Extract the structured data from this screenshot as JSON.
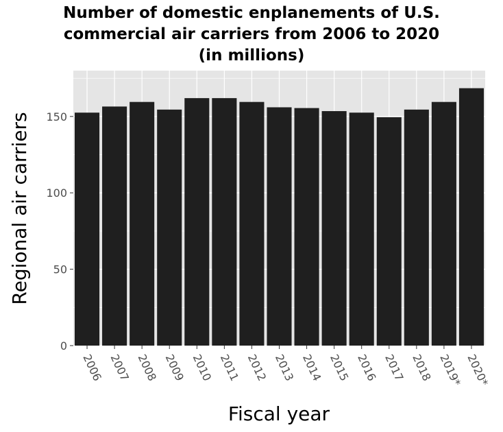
{
  "chart_data": {
    "type": "bar",
    "title_lines": [
      "Number of domestic enplanements of U.S.",
      "commercial air carriers from 2006 to 2020",
      "(in millions)"
    ],
    "xlabel": "Fiscal year",
    "ylabel": "Regional air carriers",
    "categories": [
      "2006",
      "2007",
      "2008",
      "2009",
      "2010",
      "2011",
      "2012",
      "2013",
      "2014",
      "2015",
      "2016",
      "2017",
      "2018",
      "2019*",
      "2020*"
    ],
    "values": [
      152.5,
      156.5,
      159.5,
      154.5,
      162,
      162,
      159.5,
      156,
      155.5,
      153.5,
      152.5,
      149.5,
      154.5,
      159.5,
      168.5
    ],
    "ylim": [
      0,
      180
    ],
    "yticks": [
      0,
      50,
      100,
      150
    ],
    "grid": true,
    "colors": {
      "bar": "#1f1f1f",
      "panel": "#e5e5e5",
      "grid": "#ffffff",
      "tick_label": "#4d4d4d"
    }
  }
}
